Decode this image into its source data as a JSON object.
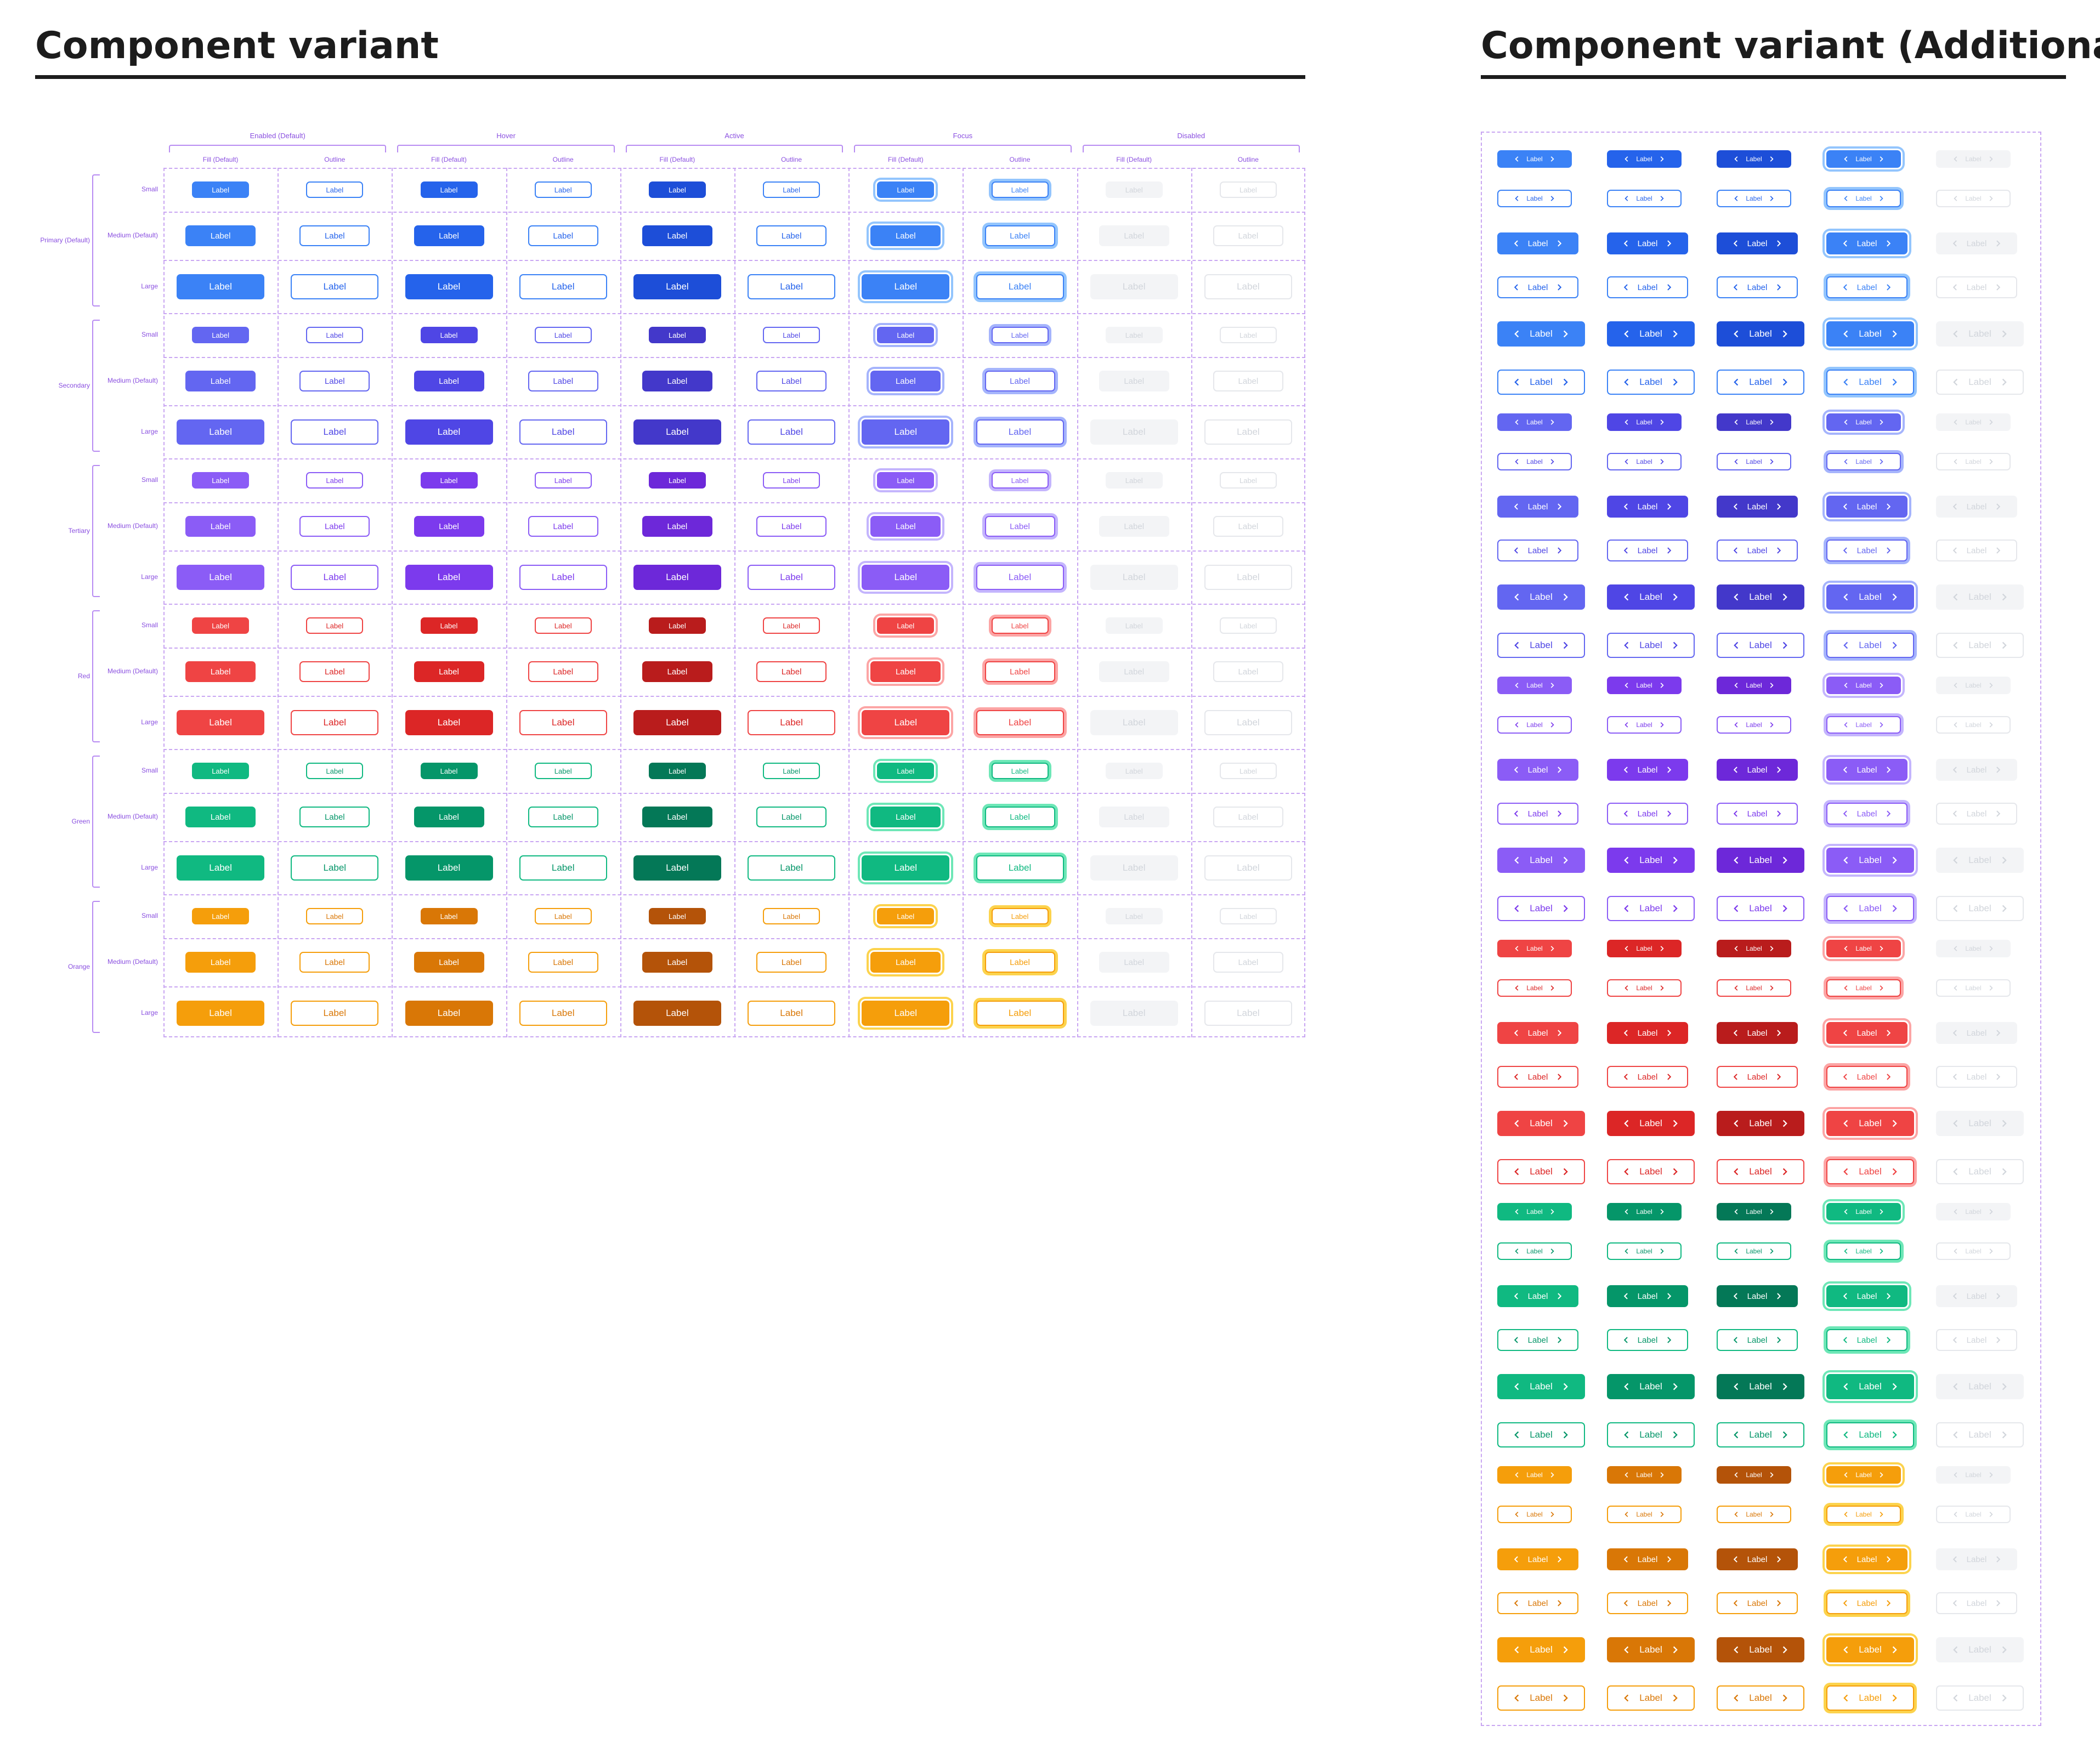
{
  "titles": {
    "main": "Component variant",
    "additional": "Component variant (Additional)"
  },
  "states": [
    "Enabled (Default)",
    "Hover",
    "Active",
    "Focus",
    "Disabled"
  ],
  "fill_types": [
    "Fill (Default)",
    "Outline"
  ],
  "variants": [
    {
      "name": "Primary (Default)",
      "colors": {
        "enabled": "#3b82f6",
        "hover": "#2563eb",
        "active": "#1d4ed8",
        "text": "#2563eb",
        "border": "#3b82f6",
        "focus_ring": "#93c5fd"
      }
    },
    {
      "name": "Secondary",
      "colors": {
        "enabled": "#6366f1",
        "hover": "#4f46e5",
        "active": "#4338ca",
        "text": "#4f46e5",
        "border": "#6366f1",
        "focus_ring": "#a5b4fc"
      }
    },
    {
      "name": "Tertiary",
      "colors": {
        "enabled": "#8b5cf6",
        "hover": "#7c3aed",
        "active": "#6d28d9",
        "text": "#7c3aed",
        "border": "#8b5cf6",
        "focus_ring": "#c4b5fd"
      }
    },
    {
      "name": "Red",
      "colors": {
        "enabled": "#ef4444",
        "hover": "#dc2626",
        "active": "#b91c1c",
        "text": "#dc2626",
        "border": "#ef4444",
        "focus_ring": "#fca5a5"
      }
    },
    {
      "name": "Green",
      "colors": {
        "enabled": "#10b981",
        "hover": "#059669",
        "active": "#047857",
        "text": "#059669",
        "border": "#10b981",
        "focus_ring": "#6ee7b7"
      }
    },
    {
      "name": "Orange",
      "colors": {
        "enabled": "#f59e0b",
        "hover": "#d97706",
        "active": "#b45309",
        "text": "#d97706",
        "border": "#f59e0b",
        "focus_ring": "#fcd34d"
      }
    }
  ],
  "sizes": [
    "Small",
    "Medium (Default)",
    "Large"
  ],
  "disabled_colors": {
    "fill": "#f3f4f6",
    "text": "#d1d5db",
    "border": "#e5e7eb"
  },
  "button_label": "Label",
  "icons": {
    "left": "chevron-left-icon",
    "right": "chevron-right-icon"
  }
}
